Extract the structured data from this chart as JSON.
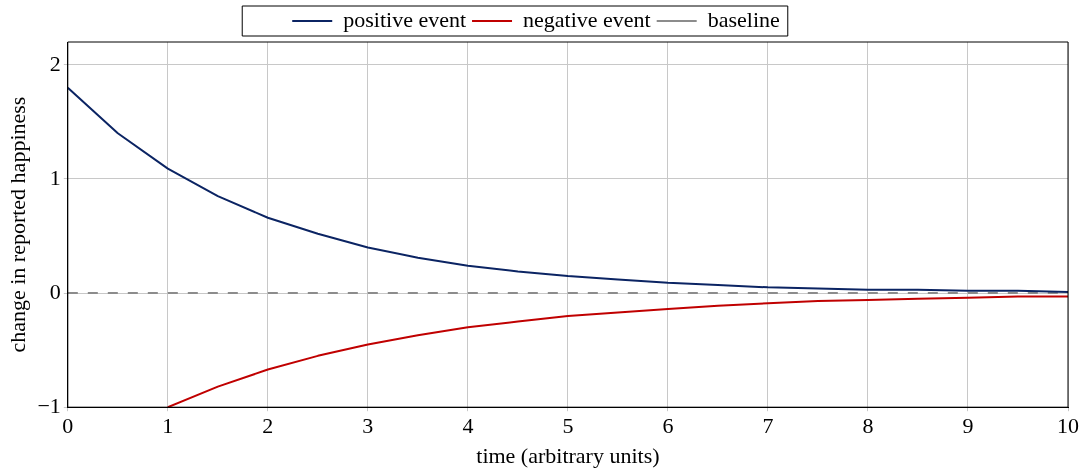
{
  "chart_data": {
    "type": "line",
    "xlabel": "time (arbitrary units)",
    "ylabel": "change in reported happiness",
    "xlim": [
      0,
      10
    ],
    "xticks": [
      0,
      1,
      2,
      3,
      4,
      5,
      6,
      7,
      8,
      9,
      10
    ],
    "ylim": [
      -1,
      2.2
    ],
    "yticks": [
      {
        "value": -1,
        "label": "−1"
      },
      0,
      1,
      2
    ],
    "grid": true,
    "legend": "top",
    "marker": "none",
    "series": [
      {
        "name": "positive event",
        "color": "#0b2463",
        "x": [
          0,
          0.5,
          1,
          1.5,
          2,
          2.5,
          3,
          3.5,
          4,
          4.5,
          5,
          5.5,
          6,
          6.5,
          7,
          7.5,
          8,
          8.5,
          9,
          9.5,
          10
        ],
        "values": [
          1.8,
          1.4,
          1.09,
          0.85,
          0.66,
          0.52,
          0.4,
          0.31,
          0.24,
          0.19,
          0.15,
          0.12,
          0.09,
          0.07,
          0.05,
          0.04,
          0.03,
          0.03,
          0.02,
          0.02,
          0.01
        ]
      },
      {
        "name": "negative event",
        "color": "#c00000",
        "x": [
          1,
          1.5,
          2,
          2.5,
          3,
          3.5,
          4,
          4.5,
          5,
          5.5,
          6,
          6.5,
          7,
          7.5,
          8,
          8.5,
          9,
          9.5,
          10
        ],
        "values": [
          -1.0,
          -0.82,
          -0.67,
          -0.55,
          -0.45,
          -0.37,
          -0.3,
          -0.25,
          -0.2,
          -0.17,
          -0.14,
          -0.11,
          -0.09,
          -0.07,
          -0.06,
          -0.05,
          -0.04,
          -0.03,
          -0.03
        ]
      },
      {
        "name": "baseline",
        "color": "#8c8c8c",
        "line_style": "dashed",
        "x": [
          0,
          10
        ],
        "values": [
          0,
          0
        ]
      }
    ]
  }
}
